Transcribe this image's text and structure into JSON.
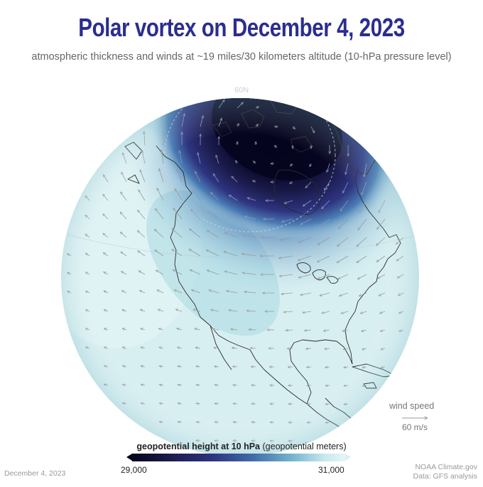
{
  "header": {
    "title": "Polar vortex on December 4, 2023",
    "subtitle": "atmospheric thickness and winds at ~19 miles/30 kilometers altitude (10-hPa pressure level)"
  },
  "map": {
    "latitude_label": "60N",
    "projection": "orthographic globe",
    "colors": {
      "vortex_core": "#05051e",
      "vortex_mid": "#2e3480",
      "vortex_edge": "#3e6aa8",
      "background_field": "#d6eef0",
      "coastline": "#2a2a2a",
      "wind_vector": "#9a9a9a"
    }
  },
  "legend": {
    "title_bold": "geopotential height at 10 hPa",
    "title_units": "(geopotential meters)",
    "min_label": "29,000",
    "max_label": "31,000"
  },
  "wind_key": {
    "label": "wind speed",
    "value": "60 m/s"
  },
  "footer": {
    "date": "December 4, 2023",
    "credit_source": "NOAA Climate.gov",
    "credit_data": "Data: GFS analysis"
  }
}
